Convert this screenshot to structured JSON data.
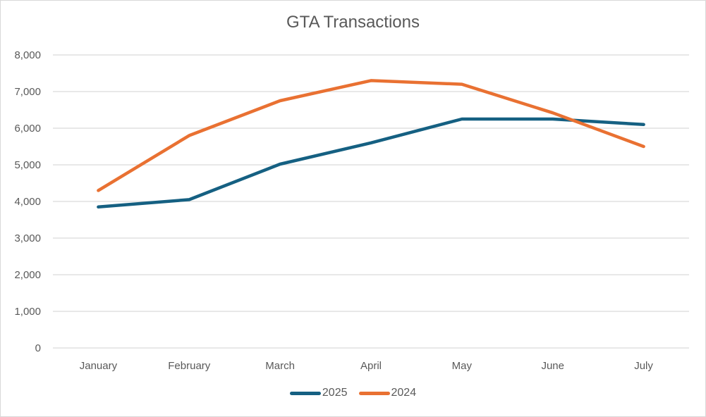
{
  "chart_data": {
    "type": "line",
    "title": "GTA Transactions",
    "xlabel": "",
    "ylabel": "",
    "categories": [
      "January",
      "February",
      "March",
      "April",
      "May",
      "June",
      "July"
    ],
    "ylim": [
      0,
      8000
    ],
    "yticks": [
      0,
      1000,
      2000,
      3000,
      4000,
      5000,
      6000,
      7000,
      8000
    ],
    "ytick_labels": [
      "0",
      "1,000",
      "2,000",
      "3,000",
      "4,000",
      "5,000",
      "6,000",
      "7,000",
      "8,000"
    ],
    "grid": true,
    "legend_position": "bottom",
    "series": [
      {
        "name": "2025",
        "color": "#156082",
        "values": [
          3850,
          4050,
          5020,
          5600,
          6250,
          6250,
          6100
        ]
      },
      {
        "name": "2024",
        "color": "#e97132",
        "values": [
          4300,
          5800,
          6750,
          7300,
          7200,
          6420,
          5500
        ]
      }
    ]
  }
}
